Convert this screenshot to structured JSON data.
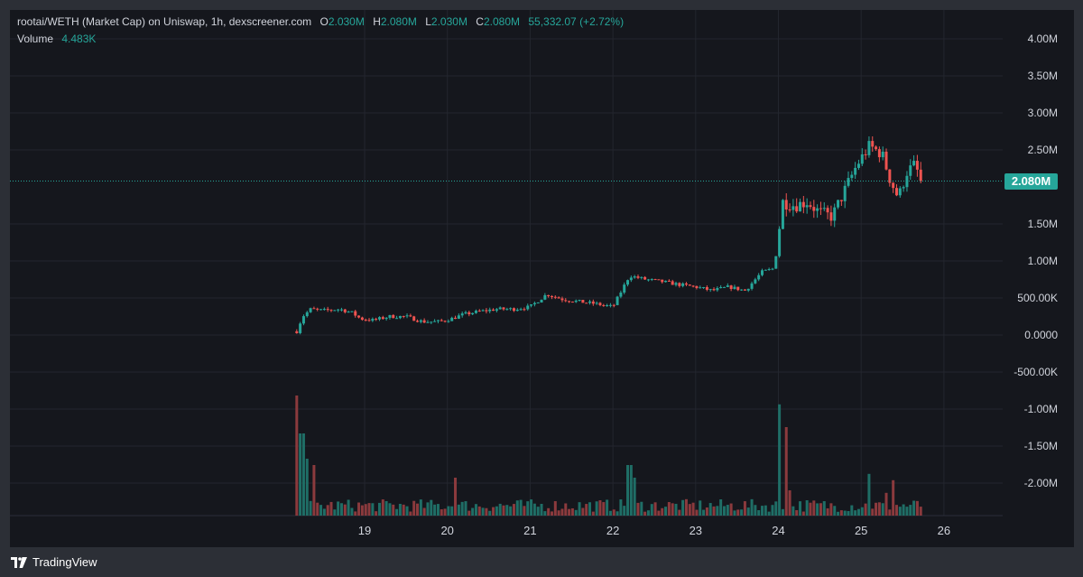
{
  "legend": {
    "title": "rootai/WETH (Market Cap) on Uniswap, 1h, dexscreener.com",
    "o_label": "O",
    "o_value": "2.030M",
    "h_label": "H",
    "h_value": "2.080M",
    "l_label": "L",
    "l_value": "2.030M",
    "c_label": "C",
    "c_value": "2.080M",
    "change": "55,332.07 (+2.72%)",
    "volume_label": "Volume",
    "volume_value": "4.483K"
  },
  "price_tag": "2.080M",
  "footer": {
    "brand": "TradingView",
    "logo_icon": "tradingview-logo-icon"
  },
  "colors": {
    "up": "#26a69a",
    "down": "#ef5350",
    "vol_up": "#1f6e66",
    "vol_down": "#8b3a3d",
    "background": "#15171d",
    "grid": "#23262e"
  },
  "chart_data": {
    "type": "candlestick",
    "interval": "1h",
    "ylim": [
      -2.4,
      4.2
    ],
    "y_unit": "M",
    "y_ticks": [
      {
        "v": 4.0,
        "label": "4.00M"
      },
      {
        "v": 3.5,
        "label": "3.50M"
      },
      {
        "v": 3.0,
        "label": "3.00M"
      },
      {
        "v": 2.5,
        "label": "2.50M"
      },
      {
        "v": 1.5,
        "label": "1.50M"
      },
      {
        "v": 1.0,
        "label": "1.00M"
      },
      {
        "v": 0.5,
        "label": "500.00K"
      },
      {
        "v": 0.0,
        "label": "0.0000"
      },
      {
        "v": -0.5,
        "label": "-500.00K"
      },
      {
        "v": -1.0,
        "label": "-1.00M"
      },
      {
        "v": -1.5,
        "label": "-1.50M"
      },
      {
        "v": -2.0,
        "label": "-2.00M"
      }
    ],
    "x_range": [
      18.2,
      26
    ],
    "x_ticks": [
      {
        "v": 19,
        "label": "19"
      },
      {
        "v": 20,
        "label": "20"
      },
      {
        "v": 21,
        "label": "21"
      },
      {
        "v": 22,
        "label": "22"
      },
      {
        "v": 23,
        "label": "23"
      },
      {
        "v": 24,
        "label": "24"
      },
      {
        "v": 25,
        "label": "25"
      },
      {
        "v": 26,
        "label": "26"
      }
    ],
    "last_price": 2.08,
    "anchors": [
      [
        18.18,
        0.05
      ],
      [
        18.25,
        0.25
      ],
      [
        18.35,
        0.35
      ],
      [
        18.5,
        0.33
      ],
      [
        18.7,
        0.35
      ],
      [
        18.85,
        0.3
      ],
      [
        18.95,
        0.22
      ],
      [
        19.1,
        0.2
      ],
      [
        19.3,
        0.25
      ],
      [
        19.5,
        0.25
      ],
      [
        19.7,
        0.18
      ],
      [
        19.9,
        0.18
      ],
      [
        20.05,
        0.22
      ],
      [
        20.2,
        0.28
      ],
      [
        20.4,
        0.32
      ],
      [
        20.6,
        0.35
      ],
      [
        20.8,
        0.35
      ],
      [
        21.0,
        0.38
      ],
      [
        21.2,
        0.55
      ],
      [
        21.4,
        0.48
      ],
      [
        21.6,
        0.45
      ],
      [
        21.8,
        0.42
      ],
      [
        22.0,
        0.38
      ],
      [
        22.2,
        0.8
      ],
      [
        22.4,
        0.75
      ],
      [
        22.6,
        0.72
      ],
      [
        22.8,
        0.68
      ],
      [
        23.0,
        0.65
      ],
      [
        23.2,
        0.6
      ],
      [
        23.4,
        0.65
      ],
      [
        23.6,
        0.6
      ],
      [
        23.8,
        0.85
      ],
      [
        23.95,
        0.9
      ],
      [
        24.05,
        1.8
      ],
      [
        24.2,
        1.75
      ],
      [
        24.35,
        1.8
      ],
      [
        24.5,
        1.65
      ],
      [
        24.65,
        1.6
      ],
      [
        24.8,
        1.95
      ],
      [
        24.95,
        2.3
      ],
      [
        25.1,
        2.55
      ],
      [
        25.25,
        2.45
      ],
      [
        25.35,
        2.1
      ],
      [
        25.45,
        1.85
      ],
      [
        25.55,
        2.2
      ],
      [
        25.65,
        2.3
      ],
      [
        25.72,
        2.08
      ]
    ],
    "volume": {
      "ylim": [
        0,
        1.0
      ],
      "spikes": [
        [
          18.18,
          0.95
        ],
        [
          18.22,
          0.65
        ],
        [
          18.27,
          0.65
        ],
        [
          18.32,
          0.45
        ],
        [
          18.38,
          0.4
        ],
        [
          20.1,
          0.3
        ],
        [
          22.2,
          0.4
        ],
        [
          22.25,
          0.3
        ],
        [
          24.0,
          0.88
        ],
        [
          24.08,
          0.7
        ],
        [
          24.15,
          0.2
        ],
        [
          25.1,
          0.33
        ],
        [
          25.4,
          0.28
        ],
        [
          25.3,
          0.18
        ]
      ]
    }
  }
}
